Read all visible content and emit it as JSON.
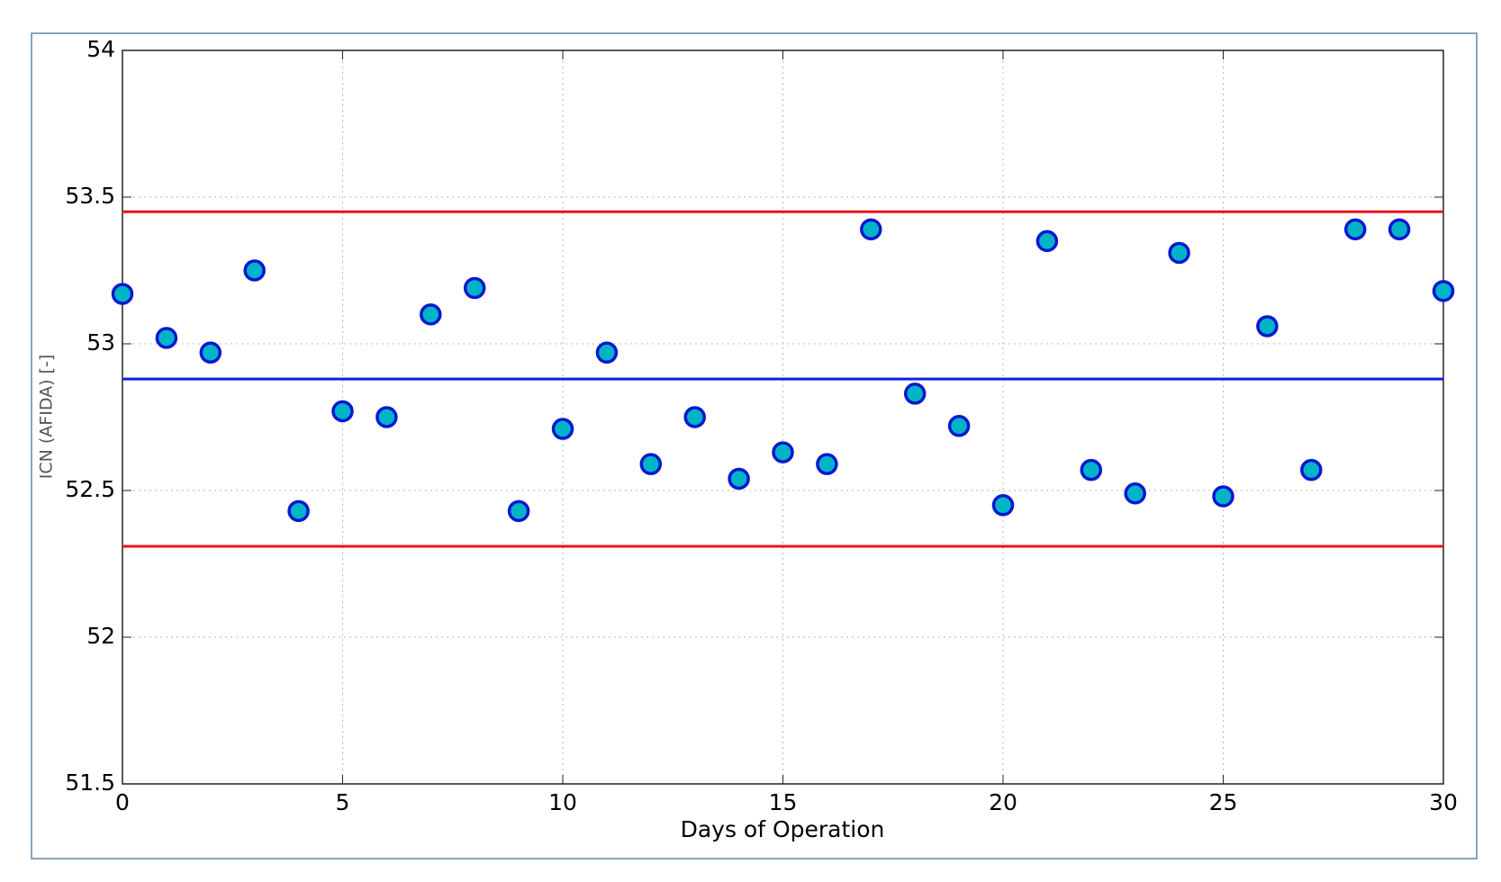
{
  "chart_data": {
    "type": "scatter",
    "x_label": "Days of Operation",
    "y_label": "ICN (AFIDA) [-]",
    "x": [
      0,
      1,
      2,
      3,
      4,
      5,
      6,
      7,
      8,
      9,
      10,
      11,
      12,
      13,
      14,
      15,
      16,
      17,
      18,
      19,
      20,
      21,
      22,
      23,
      24,
      25,
      26,
      27,
      28,
      29,
      30
    ],
    "series": [
      {
        "color": "#00b4c8",
        "edge_color": "#0a18d0",
        "values": [
          53.17,
          53.02,
          52.97,
          53.25,
          52.43,
          52.77,
          52.75,
          53.1,
          53.19,
          52.43,
          52.71,
          52.97,
          52.59,
          52.75,
          52.54,
          52.63,
          52.59,
          53.39,
          52.83,
          52.72,
          52.45,
          53.35,
          52.57,
          52.49,
          53.31,
          52.48,
          53.06,
          52.57,
          53.39,
          53.39,
          53.18
        ]
      }
    ],
    "hlines": [
      {
        "value": 53.45,
        "color": "#e8141e"
      },
      {
        "value": 52.88,
        "color": "#1020d8"
      },
      {
        "value": 52.31,
        "color": "#e8141e"
      }
    ],
    "xlim": [
      0,
      30
    ],
    "xticks": [
      0,
      5,
      10,
      15,
      20,
      25,
      30
    ],
    "ylim": [
      51.5,
      54
    ],
    "yticks": [
      51.5,
      52,
      52.5,
      53,
      53.5,
      54
    ],
    "grid": true
  }
}
